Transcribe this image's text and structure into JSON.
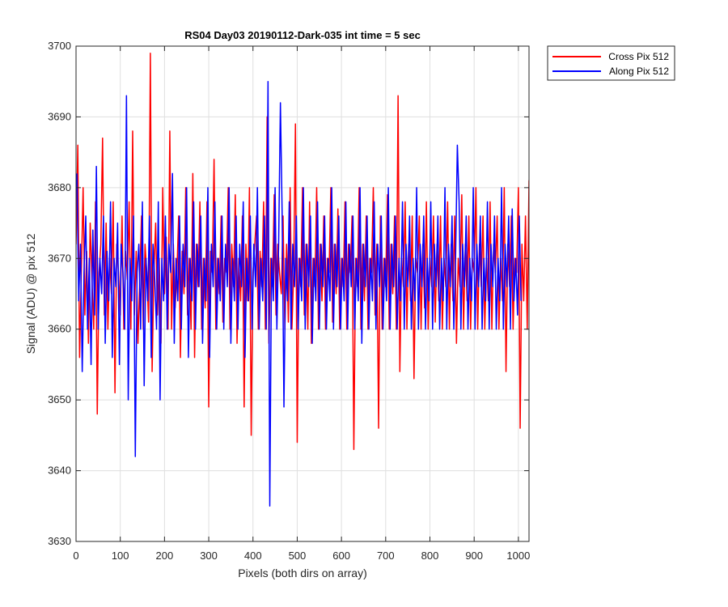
{
  "chart_data": {
    "type": "line",
    "title": "RS04 Day03 20190112-Dark-035 int time = 5 sec",
    "xlabel": "Pixels (both dirs on array)",
    "ylabel": "Signal (ADU) @ pix 512",
    "xlim": [
      0,
      1024
    ],
    "ylim": [
      3630,
      3700
    ],
    "xticks": [
      0,
      100,
      200,
      300,
      400,
      500,
      600,
      700,
      800,
      900,
      1000
    ],
    "yticks": [
      3630,
      3640,
      3650,
      3660,
      3670,
      3680,
      3690,
      3700
    ],
    "grid": true,
    "legend_position": "outside-top-right",
    "series": [
      {
        "name": "Cross Pix 512",
        "color": "#ff0000",
        "x_start": 0,
        "x_step": 4,
        "values": [
          3672,
          3686,
          3656,
          3668,
          3680,
          3662,
          3671,
          3658,
          3675,
          3667,
          3660,
          3678,
          3648,
          3668,
          3672,
          3687,
          3662,
          3675,
          3660,
          3670,
          3665,
          3678,
          3651,
          3672,
          3668,
          3662,
          3676,
          3660,
          3671,
          3667,
          3678,
          3660,
          3688,
          3662,
          3671,
          3658,
          3667,
          3676,
          3660,
          3672,
          3668,
          3661,
          3699,
          3654,
          3668,
          3675,
          3662,
          3670,
          3658,
          3680,
          3665,
          3673,
          3660,
          3688,
          3660,
          3672,
          3663,
          3668,
          3676,
          3656,
          3671,
          3665,
          3680,
          3662,
          3670,
          3660,
          3682,
          3656,
          3672,
          3666,
          3678,
          3660,
          3670,
          3663,
          3678,
          3649,
          3671,
          3668,
          3684,
          3660,
          3670,
          3665,
          3676,
          3661,
          3670,
          3668,
          3680,
          3660,
          3672,
          3666,
          3679,
          3658,
          3670,
          3664,
          3676,
          3649,
          3672,
          3664,
          3680,
          3645,
          3668,
          3672,
          3676,
          3660,
          3671,
          3666,
          3678,
          3660,
          3690,
          3658,
          3670,
          3666,
          3679,
          3662,
          3672,
          3668,
          3665,
          3676,
          3660,
          3672,
          3661,
          3680,
          3660,
          3668,
          3689,
          3644,
          3670,
          3666,
          3680,
          3662,
          3672,
          3660,
          3678,
          3658,
          3670,
          3666,
          3680,
          3660,
          3672,
          3664,
          3676,
          3660,
          3670,
          3668,
          3680,
          3661,
          3672,
          3665,
          3677,
          3660,
          3670,
          3666,
          3678,
          3660,
          3672,
          3668,
          3676,
          3643,
          3670,
          3666,
          3680,
          3660,
          3672,
          3664,
          3676,
          3660,
          3670,
          3668,
          3680,
          3662,
          3672,
          3646,
          3676,
          3660,
          3670,
          3666,
          3679,
          3660,
          3672,
          3665,
          3676,
          3660,
          3693,
          3654,
          3670,
          3666,
          3678,
          3660,
          3672,
          3664,
          3676,
          3653,
          3670,
          3668,
          3676,
          3660,
          3672,
          3663,
          3678,
          3660,
          3670,
          3666,
          3676,
          3661,
          3672,
          3664,
          3676,
          3660,
          3670,
          3666,
          3678,
          3660,
          3672,
          3664,
          3676,
          3658,
          3670,
          3666,
          3679,
          3660,
          3672,
          3664,
          3676,
          3660,
          3670,
          3668,
          3680,
          3660,
          3672,
          3666,
          3676,
          3660,
          3670,
          3664,
          3678,
          3660,
          3672,
          3668,
          3676,
          3660,
          3670,
          3664,
          3680,
          3654,
          3672,
          3666,
          3676,
          3660,
          3670,
          3668,
          3680,
          3646,
          3672,
          3664,
          3676,
          3660,
          3681,
          3654
        ]
      },
      {
        "name": "Along Pix 512",
        "color": "#0000ff",
        "x_start": 2,
        "x_step": 4,
        "values": [
          3682,
          3664,
          3672,
          3654,
          3668,
          3676,
          3660,
          3670,
          3655,
          3674,
          3662,
          3683,
          3660,
          3670,
          3665,
          3676,
          3658,
          3671,
          3664,
          3678,
          3656,
          3670,
          3666,
          3675,
          3655,
          3672,
          3668,
          3660,
          3693,
          3650,
          3670,
          3664,
          3676,
          3642,
          3668,
          3672,
          3660,
          3678,
          3652,
          3670,
          3664,
          3676,
          3656,
          3672,
          3667,
          3660,
          3678,
          3650,
          3670,
          3664,
          3676,
          3660,
          3672,
          3668,
          3682,
          3658,
          3670,
          3664,
          3676,
          3660,
          3672,
          3666,
          3680,
          3656,
          3670,
          3664,
          3678,
          3660,
          3672,
          3666,
          3676,
          3658,
          3670,
          3664,
          3680,
          3656,
          3672,
          3666,
          3678,
          3660,
          3670,
          3664,
          3676,
          3660,
          3672,
          3666,
          3680,
          3658,
          3670,
          3664,
          3676,
          3660,
          3672,
          3666,
          3678,
          3656,
          3670,
          3664,
          3676,
          3660,
          3672,
          3666,
          3680,
          3660,
          3670,
          3664,
          3676,
          3660,
          3695,
          3635,
          3670,
          3664,
          3680,
          3660,
          3672,
          3692,
          3676,
          3649,
          3670,
          3664,
          3678,
          3660,
          3672,
          3666,
          3676,
          3660,
          3670,
          3664,
          3680,
          3660,
          3672,
          3666,
          3676,
          3658,
          3670,
          3664,
          3678,
          3660,
          3672,
          3666,
          3676,
          3660,
          3670,
          3664,
          3680,
          3660,
          3672,
          3666,
          3676,
          3660,
          3670,
          3664,
          3678,
          3660,
          3672,
          3666,
          3676,
          3660,
          3670,
          3664,
          3680,
          3658,
          3672,
          3666,
          3676,
          3660,
          3670,
          3664,
          3678,
          3660,
          3672,
          3666,
          3676,
          3660,
          3670,
          3664,
          3680,
          3660,
          3672,
          3666,
          3676,
          3660,
          3670,
          3664,
          3678,
          3660,
          3672,
          3666,
          3676,
          3660,
          3670,
          3664,
          3680,
          3660,
          3672,
          3666,
          3676,
          3660,
          3670,
          3664,
          3678,
          3660,
          3672,
          3666,
          3676,
          3660,
          3670,
          3664,
          3680,
          3660,
          3672,
          3666,
          3676,
          3660,
          3670,
          3686,
          3678,
          3660,
          3672,
          3666,
          3676,
          3660,
          3670,
          3664,
          3680,
          3660,
          3672,
          3666,
          3676,
          3660,
          3670,
          3664,
          3678,
          3660,
          3672,
          3666,
          3676,
          3660,
          3670,
          3664,
          3680,
          3660,
          3672,
          3666,
          3676,
          3660,
          3677,
          3664,
          3670,
          3662,
          3676,
          3664
        ]
      }
    ]
  }
}
